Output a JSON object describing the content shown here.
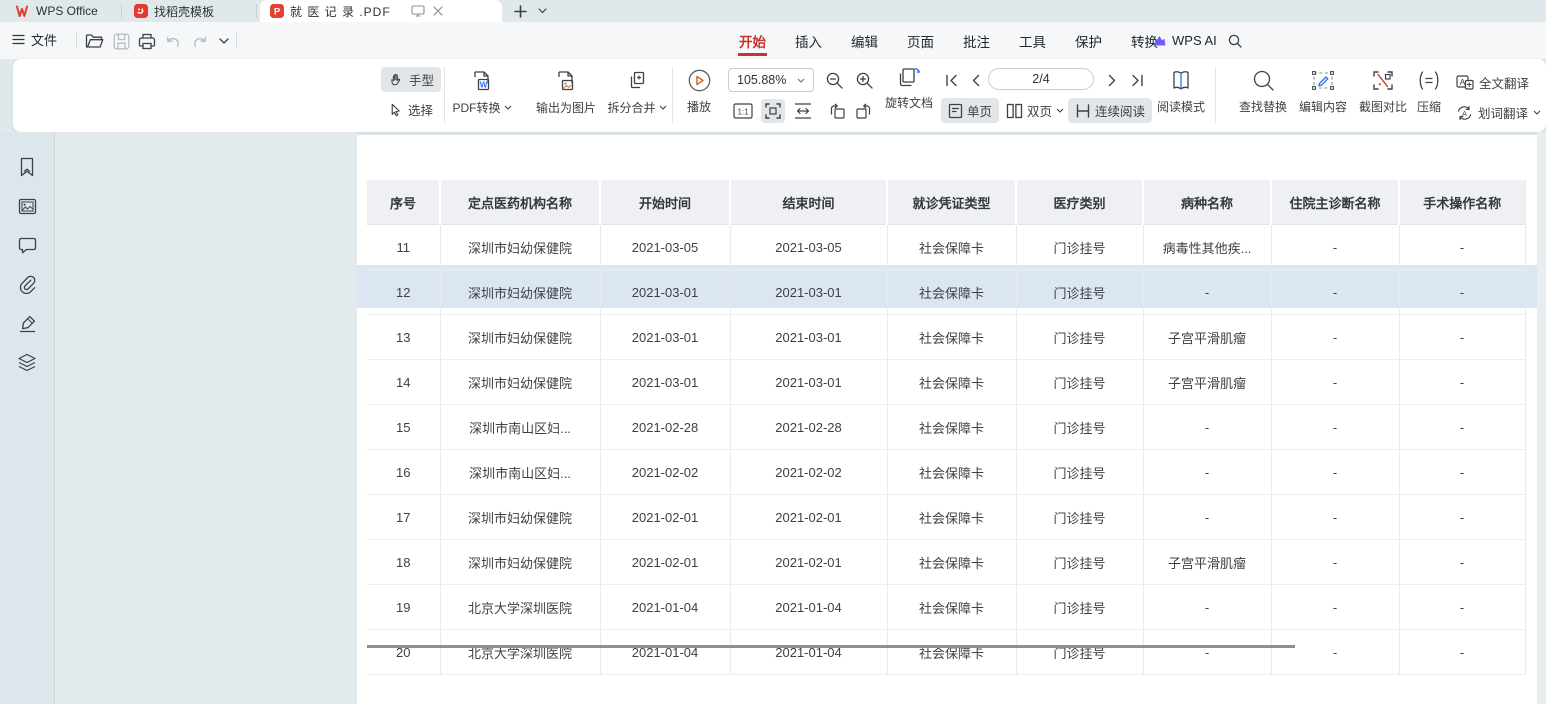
{
  "window": {
    "tabs": [
      {
        "label": "WPS Office"
      },
      {
        "label": "找稻壳模板"
      },
      {
        "label": "就 医 记 录 .PDF"
      }
    ]
  },
  "quickbar": {
    "file": "文件"
  },
  "menubar": {
    "items": [
      "开始",
      "插入",
      "编辑",
      "页面",
      "批注",
      "工具",
      "保护",
      "转换"
    ],
    "active_item": "开始",
    "ai_label": "WPS AI"
  },
  "ribbon": {
    "hand": "手型",
    "select": "选择",
    "pdf_convert": "PDF转换",
    "export_image": "输出为图片",
    "split_merge": "拆分合并",
    "play": "播放",
    "zoom_value": "105.88%",
    "page_indicator": "2/4",
    "rotate_doc": "旋转文档",
    "single_page": "单页",
    "double_page": "双页",
    "continuous_read": "连续阅读",
    "read_mode": "阅读模式",
    "find_replace": "查找替换",
    "edit_content": "编辑内容",
    "screenshot_compare": "截图对比",
    "compress": "压缩",
    "full_translate": "全文翻译",
    "word_translate": "划词翻译"
  },
  "document": {
    "table": {
      "headers": [
        "序号",
        "定点医药机构名称",
        "开始时间",
        "结束时间",
        "就诊凭证类型",
        "医疗类别",
        "病种名称",
        "住院主诊断名称",
        "手术操作名称"
      ],
      "rows": [
        [
          "11",
          "深圳市妇幼保健院",
          "2021-03-05",
          "2021-03-05",
          "社会保障卡",
          "门诊挂号",
          "病毒性其他疾...",
          "-",
          "-"
        ],
        [
          "12",
          "深圳市妇幼保健院",
          "2021-03-01",
          "2021-03-01",
          "社会保障卡",
          "门诊挂号",
          "-",
          "-",
          "-"
        ],
        [
          "13",
          "深圳市妇幼保健院",
          "2021-03-01",
          "2021-03-01",
          "社会保障卡",
          "门诊挂号",
          "子宫平滑肌瘤",
          "-",
          "-"
        ],
        [
          "14",
          "深圳市妇幼保健院",
          "2021-03-01",
          "2021-03-01",
          "社会保障卡",
          "门诊挂号",
          "子宫平滑肌瘤",
          "-",
          "-"
        ],
        [
          "15",
          "深圳市南山区妇...",
          "2021-02-28",
          "2021-02-28",
          "社会保障卡",
          "门诊挂号",
          "-",
          "-",
          "-"
        ],
        [
          "16",
          "深圳市南山区妇...",
          "2021-02-02",
          "2021-02-02",
          "社会保障卡",
          "门诊挂号",
          "-",
          "-",
          "-"
        ],
        [
          "17",
          "深圳市妇幼保健院",
          "2021-02-01",
          "2021-02-01",
          "社会保障卡",
          "门诊挂号",
          "-",
          "-",
          "-"
        ],
        [
          "18",
          "深圳市妇幼保健院",
          "2021-02-01",
          "2021-02-01",
          "社会保障卡",
          "门诊挂号",
          "子宫平滑肌瘤",
          "-",
          "-"
        ],
        [
          "19",
          "北京大学深圳医院",
          "2021-01-04",
          "2021-01-04",
          "社会保障卡",
          "门诊挂号",
          "-",
          "-",
          "-"
        ],
        [
          "20",
          "北京大学深圳医院",
          "2021-01-04",
          "2021-01-04",
          "社会保障卡",
          "门诊挂号",
          "-",
          "-",
          "-"
        ]
      ],
      "highlighted_row": "12"
    }
  },
  "colors": {
    "accent_red": "#c7342c",
    "row_highlight": "#dbe6f2",
    "table_header_bg": "#eef0f3",
    "play_orange": "#d2691e",
    "chrome_bg": "#e1e8eb"
  }
}
